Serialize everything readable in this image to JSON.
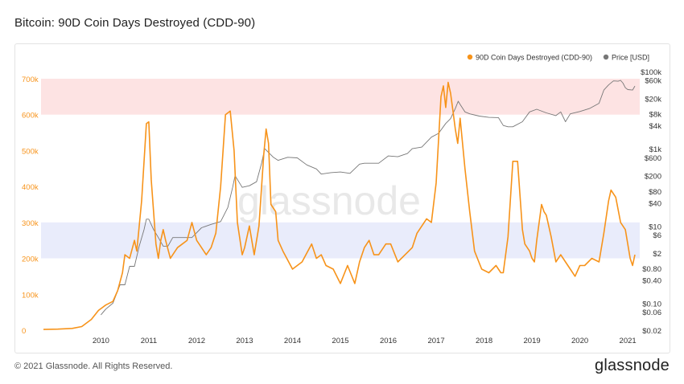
{
  "title": "Bitcoin: 90D Coin Days Destroyed (CDD-90)",
  "footer": "© 2021 Glassnode. All Rights Reserved.",
  "brand": "glassnode",
  "watermark": "glassnode",
  "colors": {
    "cdd": "#f7931a",
    "price": "#777777",
    "high_band": "#fde3e3",
    "low_band": "#e9ecfb"
  },
  "chart_data": {
    "type": "line",
    "title": "Bitcoin: 90D Coin Days Destroyed (CDD-90)",
    "legend_position": "top-right",
    "legend": [
      {
        "label": "90D Coin Days Destroyed (CDD-90)",
        "color": "#f7931a"
      },
      {
        "label": "Price [USD]",
        "color": "#777777"
      }
    ],
    "x_ticks": [
      "2010",
      "2011",
      "2012",
      "2013",
      "2014",
      "2015",
      "2016",
      "2017",
      "2018",
      "2019",
      "2020",
      "2021"
    ],
    "y_left_ticks": [
      "0",
      "100k",
      "200k",
      "300k",
      "400k",
      "500k",
      "600k",
      "700k"
    ],
    "y_left_range": [
      0,
      700000
    ],
    "y_right_ticks": [
      "$0.02",
      "$0.06",
      "$0.10",
      "$0.40",
      "$0.80",
      "$2",
      "$6",
      "$10",
      "$40",
      "$80",
      "$200",
      "$600",
      "$1k",
      "$4k",
      "$8k",
      "$20k",
      "$60k",
      "$100k"
    ],
    "y_right_scale": "log",
    "y_right_range": [
      0.02,
      100000
    ],
    "bands": [
      {
        "from": 600000,
        "to": 700000,
        "color": "#fde3e3"
      },
      {
        "from": 200000,
        "to": 300000,
        "color": "#e9ecfb"
      }
    ],
    "series": [
      {
        "name": "90D Coin Days Destroyed (CDD-90)",
        "axis": "left",
        "x": [
          2009.3,
          2009.6,
          2009.9,
          2010.1,
          2010.3,
          2010.45,
          2010.6,
          2010.75,
          2010.85,
          2010.95,
          2011.0,
          2011.1,
          2011.2,
          2011.25,
          2011.35,
          2011.45,
          2011.5,
          2011.55,
          2011.65,
          2011.7,
          2011.75,
          2011.8,
          2011.85,
          2011.95,
          2012.1,
          2012.2,
          2012.3,
          2012.4,
          2012.5,
          2012.6,
          2012.7,
          2012.8,
          2012.9,
          2013.0,
          2013.1,
          2013.2,
          2013.28,
          2013.35,
          2013.45,
          2013.5,
          2013.6,
          2013.7,
          2013.8,
          2013.9,
          2013.95,
          2014.0,
          2014.05,
          2014.15,
          2014.2,
          2014.3,
          2014.5,
          2014.7,
          2014.9,
          2015.0,
          2015.1,
          2015.2,
          2015.35,
          2015.5,
          2015.65,
          2015.8,
          2015.9,
          2016.0,
          2016.1,
          2016.2,
          2016.3,
          2016.45,
          2016.55,
          2016.7,
          2016.85,
          2017.0,
          2017.1,
          2017.2,
          2017.3,
          2017.4,
          2017.5,
          2017.6,
          2017.65,
          2017.7,
          2017.75,
          2017.8,
          2017.85,
          2017.9,
          2017.95,
          2018.0,
          2018.1,
          2018.2,
          2018.3,
          2018.45,
          2018.6,
          2018.75,
          2018.85,
          2018.9,
          2019.0,
          2019.1,
          2019.2,
          2019.3,
          2019.35,
          2019.45,
          2019.5,
          2019.55,
          2019.6,
          2019.7,
          2019.75,
          2019.8,
          2019.9,
          2020.0,
          2020.1,
          2020.2,
          2020.3,
          2020.4,
          2020.5,
          2020.6,
          2020.75,
          2020.9,
          2021.0,
          2021.1,
          2021.15,
          2021.25,
          2021.35,
          2021.45,
          2021.5,
          2021.55,
          2021.6,
          2021.65
        ],
        "y": [
          2000,
          3000,
          5000,
          10000,
          30000,
          55000,
          70000,
          80000,
          110000,
          160000,
          210000,
          200000,
          250000,
          220000,
          360000,
          575000,
          580000,
          420000,
          240000,
          200000,
          250000,
          280000,
          250000,
          200000,
          230000,
          240000,
          250000,
          300000,
          250000,
          230000,
          210000,
          230000,
          270000,
          400000,
          600000,
          610000,
          500000,
          300000,
          210000,
          230000,
          290000,
          210000,
          290000,
          490000,
          560000,
          520000,
          350000,
          330000,
          250000,
          220000,
          170000,
          190000,
          240000,
          200000,
          210000,
          180000,
          170000,
          130000,
          180000,
          130000,
          190000,
          230000,
          250000,
          210000,
          210000,
          240000,
          240000,
          190000,
          210000,
          230000,
          270000,
          290000,
          310000,
          300000,
          410000,
          650000,
          680000,
          620000,
          690000,
          660000,
          610000,
          560000,
          520000,
          590000,
          450000,
          330000,
          220000,
          170000,
          160000,
          180000,
          160000,
          160000,
          260000,
          470000,
          470000,
          280000,
          240000,
          220000,
          200000,
          190000,
          250000,
          350000,
          330000,
          320000,
          260000,
          190000,
          210000,
          190000,
          170000,
          150000,
          180000,
          180000,
          200000,
          190000,
          270000,
          360000,
          390000,
          370000,
          300000,
          280000,
          240000,
          200000,
          180000,
          210000
        ]
      },
      {
        "name": "Price [USD]",
        "axis": "right",
        "x": [
          2010.5,
          2010.6,
          2010.75,
          2010.9,
          2011.0,
          2011.1,
          2011.2,
          2011.3,
          2011.4,
          2011.45,
          2011.5,
          2011.6,
          2011.7,
          2011.8,
          2011.9,
          2012.0,
          2012.2,
          2012.4,
          2012.6,
          2012.8,
          2013.0,
          2013.15,
          2013.25,
          2013.3,
          2013.45,
          2013.6,
          2013.75,
          2013.85,
          2013.92,
          2014.0,
          2014.1,
          2014.2,
          2014.4,
          2014.6,
          2014.8,
          2015.0,
          2015.1,
          2015.3,
          2015.5,
          2015.7,
          2015.9,
          2016.0,
          2016.3,
          2016.5,
          2016.7,
          2016.9,
          2017.0,
          2017.2,
          2017.4,
          2017.55,
          2017.7,
          2017.8,
          2017.9,
          2017.96,
          2018.0,
          2018.1,
          2018.2,
          2018.4,
          2018.6,
          2018.8,
          2018.9,
          2019.0,
          2019.1,
          2019.3,
          2019.45,
          2019.6,
          2019.8,
          2020.0,
          2020.1,
          2020.2,
          2020.3,
          2020.5,
          2020.7,
          2020.9,
          2021.0,
          2021.1,
          2021.2,
          2021.3,
          2021.35,
          2021.4,
          2021.45,
          2021.5,
          2021.6,
          2021.65
        ],
        "y": [
          0.05,
          0.07,
          0.1,
          0.3,
          0.3,
          0.9,
          0.9,
          3,
          8,
          15,
          15,
          8,
          5,
          3,
          3,
          5,
          5,
          5,
          9,
          11,
          13,
          30,
          100,
          200,
          100,
          110,
          140,
          400,
          1000,
          800,
          600,
          500,
          600,
          580,
          380,
          300,
          220,
          240,
          250,
          230,
          400,
          420,
          420,
          650,
          620,
          750,
          1000,
          1100,
          2000,
          2500,
          4500,
          6000,
          11000,
          17000,
          14000,
          9000,
          8000,
          7000,
          6500,
          6400,
          4000,
          3700,
          3700,
          5000,
          9000,
          10500,
          8500,
          7200,
          9000,
          5000,
          8000,
          9200,
          11000,
          15000,
          33000,
          45000,
          57000,
          56000,
          59000,
          50000,
          38000,
          34000,
          33000,
          42000
        ]
      }
    ]
  }
}
